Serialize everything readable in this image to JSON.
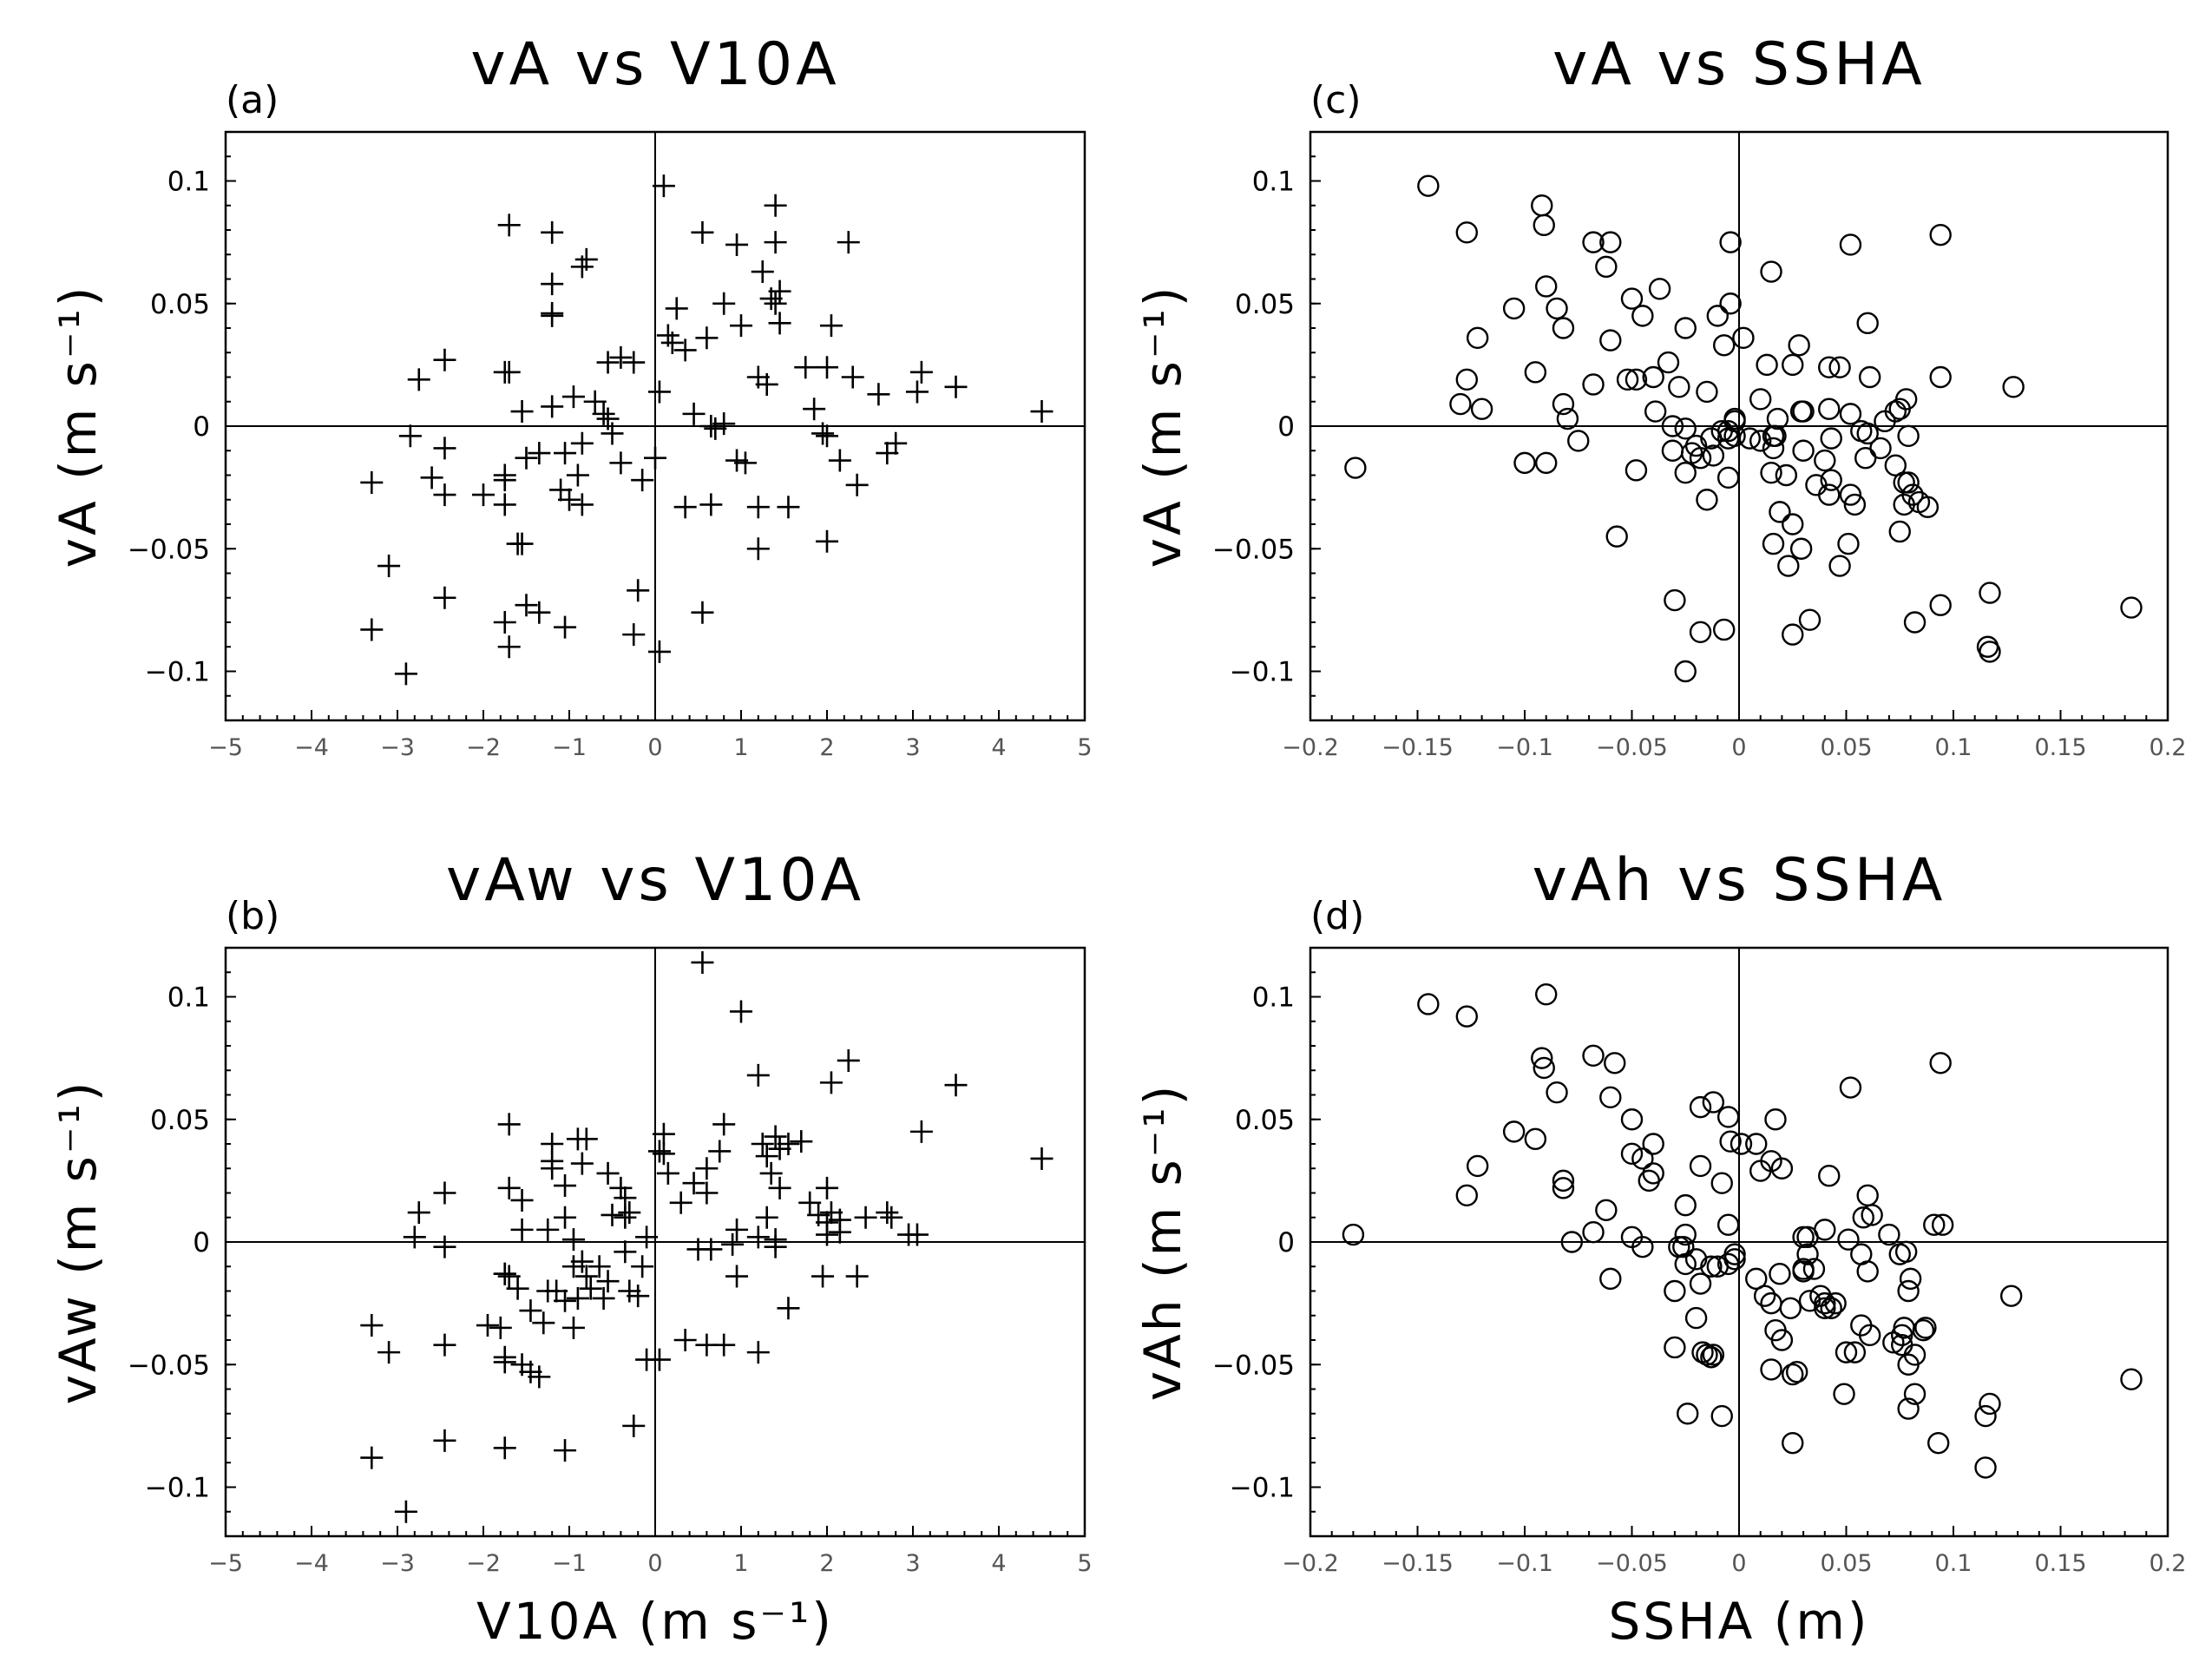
{
  "chart_data": [
    {
      "id": "a",
      "type": "scatter",
      "panel_label": "(a)",
      "title": "vA  vs  V10A",
      "ylabel": "vA (m s⁻¹)",
      "xlabel": "",
      "marker": "plus",
      "xlim": [
        -5,
        5
      ],
      "ylim": [
        -0.12,
        0.12
      ],
      "xticks": [
        -5,
        -4,
        -3,
        -2,
        -1,
        0,
        1,
        2,
        3,
        4,
        5
      ],
      "yticks": [
        -0.1,
        -0.05,
        0,
        0.05,
        0.1
      ],
      "xtick_labels": [
        "−5",
        "−4",
        "−3",
        "−2",
        "−1",
        "0",
        "1",
        "2",
        "3",
        "4",
        "5"
      ],
      "ytick_labels": [
        "−0.1",
        "−0.05",
        "0",
        "0.05",
        "0.1"
      ],
      "x": [
        0.1,
        1.4,
        -1.7,
        -1.2,
        0.55,
        0.95,
        2.25,
        1.4,
        -0.8,
        -0.85,
        1.25,
        0.25,
        -1.2,
        -1.2,
        1.45,
        1.4,
        0.8,
        1.35,
        -1.2,
        0.15,
        2.05,
        1.45,
        1.0,
        0.6,
        0.35,
        0.2,
        -0.4,
        -0.25,
        -2.45,
        -0.55,
        -2.75,
        1.75,
        2.0,
        2.3,
        3.1,
        3.5,
        0.05,
        1.2,
        -0.95,
        -1.75,
        -1.7,
        -1.2,
        -0.7,
        -0.55,
        1.3,
        2.6,
        3.05,
        0.45,
        -0.6,
        0.8,
        0.65,
        0.7,
        1.85,
        4.5,
        -1.55,
        -0.5,
        1.95,
        2.0,
        -2.85,
        -0.85,
        -1.05,
        2.8,
        2.7,
        -2.45,
        0.0,
        1.05,
        -1.35,
        -1.5,
        -0.4,
        -1.75,
        0.95,
        -0.9,
        2.15,
        -3.3,
        -2.6,
        -1.75,
        2.35,
        -0.15,
        -2.45,
        -2.0,
        -1.1,
        -1.0,
        -1.75,
        0.65,
        1.2,
        -0.85,
        1.55,
        0.35,
        2.0,
        -1.6,
        -1.55,
        1.2,
        -3.1,
        -0.2,
        -2.45,
        -1.5,
        -1.35,
        0.55,
        -1.75,
        -1.05,
        -3.3,
        -0.25,
        -1.7,
        0.05,
        -2.9
      ],
      "y": [
        0.098,
        0.09,
        0.082,
        0.079,
        0.079,
        0.074,
        0.075,
        0.075,
        0.068,
        0.065,
        0.063,
        0.048,
        0.058,
        0.046,
        0.055,
        0.05,
        0.05,
        0.052,
        0.045,
        0.037,
        0.041,
        0.042,
        0.041,
        0.036,
        0.031,
        0.034,
        0.028,
        0.026,
        0.027,
        0.026,
        0.019,
        0.024,
        0.024,
        0.02,
        0.022,
        0.016,
        0.014,
        0.02,
        0.012,
        0.022,
        0.022,
        0.008,
        0.01,
        0.003,
        0.017,
        0.013,
        0.014,
        0.005,
        0.005,
        0.001,
        0.0,
        -0.001,
        0.007,
        0.006,
        0.006,
        -0.003,
        -0.003,
        -0.004,
        -0.004,
        -0.007,
        -0.011,
        -0.007,
        -0.011,
        -0.009,
        -0.013,
        -0.015,
        -0.011,
        -0.013,
        -0.015,
        -0.02,
        -0.014,
        -0.02,
        -0.014,
        -0.023,
        -0.021,
        -0.022,
        -0.024,
        -0.022,
        -0.028,
        -0.028,
        -0.026,
        -0.03,
        -0.032,
        -0.032,
        -0.033,
        -0.032,
        -0.033,
        -0.033,
        -0.047,
        -0.048,
        -0.048,
        -0.05,
        -0.057,
        -0.067,
        -0.07,
        -0.073,
        -0.076,
        -0.076,
        -0.08,
        -0.082,
        -0.083,
        -0.085,
        -0.09,
        -0.092,
        -0.101
      ]
    },
    {
      "id": "b",
      "type": "scatter",
      "panel_label": "(b)",
      "title": "vAw  vs  V10A",
      "ylabel": "vAw (m s⁻¹)",
      "xlabel": "V10A (m s⁻¹)",
      "marker": "plus",
      "xlim": [
        -5,
        5
      ],
      "ylim": [
        -0.12,
        0.12
      ],
      "xticks": [
        -5,
        -4,
        -3,
        -2,
        -1,
        0,
        1,
        2,
        3,
        4,
        5
      ],
      "yticks": [
        -0.1,
        -0.05,
        0,
        0.05,
        0.1
      ],
      "xtick_labels": [
        "−5",
        "−4",
        "−3",
        "−2",
        "−1",
        "0",
        "1",
        "2",
        "3",
        "4",
        "5"
      ],
      "ytick_labels": [
        "−0.1",
        "−0.05",
        "0",
        "0.05",
        "0.1"
      ],
      "x": [
        0.55,
        1.0,
        2.25,
        1.2,
        2.05,
        3.5,
        3.1,
        4.5,
        -1.7,
        0.8,
        -0.8,
        -0.9,
        1.4,
        -1.2,
        0.1,
        1.25,
        1.55,
        1.7,
        1.45,
        0.75,
        -1.2,
        0.05,
        0.1,
        0.6,
        -0.85,
        -1.2,
        1.3,
        -0.55,
        0.15,
        1.35,
        -1.05,
        0.45,
        2.45,
        0.6,
        2.0,
        1.8,
        -0.4,
        -0.3,
        -0.35,
        1.45,
        2.7,
        1.9,
        -2.45,
        -1.55,
        2.05,
        2.15,
        2.75,
        -2.75,
        2.15,
        1.3,
        -1.05,
        -0.35,
        -1.25,
        -0.5,
        0.95,
        1.4,
        -1.7,
        0.3,
        2.95,
        -2.8,
        1.2,
        3.05,
        -1.55,
        -2.45,
        2.0,
        -0.95,
        -0.1,
        0.5,
        0.65,
        1.4,
        2.0,
        -0.85,
        -0.35,
        -0.95,
        -0.65,
        0.9,
        -0.15,
        1.95,
        2.35,
        -1.25,
        -1.7,
        0.95,
        -0.55,
        -0.8,
        -1.75,
        -1.15,
        -0.3,
        -1.6,
        -1.45,
        -0.75,
        1.55,
        -1.75,
        -1.05,
        -3.3,
        -1.8,
        -0.9,
        -0.6,
        -0.2,
        -1.95,
        -1.3,
        -0.95,
        0.35,
        0.6,
        0.8,
        -2.45,
        -1.55,
        1.2,
        -0.1,
        -1.75,
        0.05,
        -1.75,
        -1.45,
        -1.35,
        -3.1,
        -0.25,
        -2.45,
        -1.75,
        -1.05,
        -3.3,
        -2.9
      ],
      "y": [
        0.114,
        0.094,
        0.074,
        0.068,
        0.065,
        0.064,
        0.045,
        0.034,
        0.048,
        0.048,
        0.042,
        0.042,
        0.043,
        0.04,
        0.044,
        0.04,
        0.04,
        0.041,
        0.038,
        0.037,
        0.033,
        0.037,
        0.036,
        0.03,
        0.032,
        0.03,
        0.035,
        0.028,
        0.028,
        0.028,
        0.023,
        0.024,
        0.01,
        0.02,
        0.022,
        0.016,
        0.022,
        0.012,
        0.018,
        0.022,
        0.012,
        0.011,
        0.02,
        0.017,
        0.012,
        0.009,
        0.01,
        0.012,
        0.004,
        0.01,
        0.01,
        0.01,
        0.005,
        0.011,
        0.005,
        0.001,
        0.022,
        0.016,
        0.003,
        0.002,
        0.002,
        0.003,
        0.005,
        -0.002,
        0.008,
        0.001,
        0.002,
        -0.003,
        -0.003,
        -0.002,
        0.003,
        -0.008,
        -0.004,
        -0.01,
        -0.01,
        -0.001,
        -0.01,
        -0.014,
        -0.014,
        -0.02,
        -0.014,
        -0.014,
        -0.016,
        -0.014,
        -0.013,
        -0.02,
        -0.02,
        -0.019,
        -0.028,
        -0.019,
        -0.027,
        -0.013,
        -0.024,
        -0.034,
        -0.035,
        -0.023,
        -0.023,
        -0.022,
        -0.034,
        -0.033,
        -0.035,
        -0.04,
        -0.042,
        -0.042,
        -0.042,
        -0.05,
        -0.045,
        -0.048,
        -0.047,
        -0.048,
        -0.049,
        -0.053,
        -0.055,
        -0.045,
        -0.075,
        -0.081,
        -0.084,
        -0.085,
        -0.088,
        -0.11
      ]
    },
    {
      "id": "c",
      "type": "scatter",
      "panel_label": "(c)",
      "title": "vA  vs  SSHA",
      "ylabel": "vA (m s⁻¹)",
      "xlabel": "",
      "marker": "circle",
      "xlim": [
        -0.2,
        0.2
      ],
      "ylim": [
        -0.12,
        0.12
      ],
      "xticks": [
        -0.2,
        -0.15,
        -0.1,
        -0.05,
        0,
        0.05,
        0.1,
        0.15,
        0.2
      ],
      "yticks": [
        -0.1,
        -0.05,
        0,
        0.05,
        0.1
      ],
      "xtick_labels": [
        "−0.2",
        "−0.15",
        "−0.1",
        "−0.05",
        "0",
        "0.05",
        "0.1",
        "0.15",
        "0.2"
      ],
      "ytick_labels": [
        "−0.1",
        "−0.05",
        "0",
        "0.05",
        "0.1"
      ],
      "x": [
        -0.145,
        -0.092,
        -0.127,
        -0.091,
        0.094,
        -0.068,
        -0.06,
        0.052,
        -0.062,
        -0.004,
        -0.09,
        0.015,
        -0.085,
        -0.105,
        -0.05,
        -0.037,
        -0.004,
        -0.082,
        0.06,
        -0.01,
        -0.045,
        0.047,
        -0.122,
        0.002,
        -0.06,
        -0.025,
        -0.007,
        0.013,
        0.028,
        0.025,
        -0.033,
        -0.028,
        -0.052,
        0.042,
        -0.127,
        -0.082,
        -0.04,
        -0.095,
        0.061,
        0.078,
        -0.068,
        -0.015,
        0.094,
        0.073,
        -0.048,
        0.01,
        -0.039,
        0.128,
        -0.13,
        -0.002,
        0.042,
        0.018,
        -0.005,
        -0.08,
        -0.002,
        0.052,
        0.075,
        0.057,
        -0.031,
        0.016,
        -0.005,
        -0.075,
        -0.12,
        0.017,
        -0.025,
        -0.008,
        -0.002,
        0.03,
        0.01,
        0.029,
        0.043,
        0.005,
        0.068,
        0.016,
        -0.013,
        -0.02,
        0.03,
        0.06,
        -0.022,
        -0.012,
        0.079,
        -0.018,
        -0.031,
        -0.1,
        -0.048,
        -0.09,
        0.073,
        -0.025,
        0.015,
        0.04,
        0.066,
        0.059,
        0.022,
        0.042,
        0.043,
        0.036,
        -0.005,
        0.077,
        0.079,
        0.081,
        0.052,
        0.084,
        0.054,
        -0.015,
        0.077,
        0.019,
        0.088,
        0.075,
        -0.179,
        0.029,
        0.016,
        0.025,
        0.051,
        -0.057,
        0.023,
        0.047,
        0.117,
        0.094,
        0.082,
        -0.007,
        -0.018,
        0.025,
        0.183,
        -0.03,
        0.116,
        0.117,
        0.033,
        -0.025
      ],
      "y": [
        0.098,
        0.09,
        0.079,
        0.082,
        0.078,
        0.075,
        0.075,
        0.074,
        0.065,
        0.075,
        0.057,
        0.063,
        0.048,
        0.048,
        0.052,
        0.056,
        0.05,
        0.04,
        0.042,
        0.045,
        0.045,
        0.024,
        0.036,
        0.036,
        0.035,
        0.04,
        0.033,
        0.025,
        0.033,
        0.025,
        0.026,
        0.016,
        0.019,
        0.024,
        0.019,
        0.009,
        0.02,
        0.022,
        0.02,
        0.011,
        0.017,
        0.014,
        0.02,
        0.006,
        0.019,
        0.011,
        0.006,
        0.016,
        0.009,
        0.003,
        0.007,
        0.003,
        -0.002,
        0.003,
        0.002,
        0.005,
        0.007,
        -0.002,
        0.0,
        -0.004,
        -0.005,
        -0.006,
        0.007,
        -0.004,
        -0.001,
        -0.002,
        -0.004,
        0.006,
        -0.006,
        0.006,
        -0.005,
        -0.005,
        0.002,
        -0.009,
        -0.005,
        -0.008,
        -0.01,
        -0.003,
        -0.011,
        -0.012,
        -0.004,
        -0.013,
        -0.01,
        -0.015,
        -0.018,
        -0.015,
        -0.016,
        -0.019,
        -0.019,
        -0.014,
        -0.009,
        -0.013,
        -0.02,
        -0.028,
        -0.022,
        -0.024,
        -0.021,
        -0.023,
        -0.023,
        -0.028,
        -0.028,
        -0.031,
        -0.032,
        -0.03,
        -0.032,
        -0.035,
        -0.033,
        -0.043,
        -0.017,
        -0.05,
        -0.048,
        -0.04,
        -0.048,
        -0.045,
        -0.057,
        -0.057,
        -0.068,
        -0.073,
        -0.08,
        -0.083,
        -0.084,
        -0.085,
        -0.074,
        -0.071,
        -0.09,
        -0.092,
        -0.079,
        -0.1
      ]
    },
    {
      "id": "d",
      "type": "scatter",
      "panel_label": "(d)",
      "title": "vAh  vs  SSHA",
      "ylabel": "vAh (m s⁻¹)",
      "xlabel": "SSHA (m)",
      "marker": "circle",
      "xlim": [
        -0.2,
        0.2
      ],
      "ylim": [
        -0.12,
        0.12
      ],
      "xticks": [
        -0.2,
        -0.15,
        -0.1,
        -0.05,
        0,
        0.05,
        0.1,
        0.15,
        0.2
      ],
      "yticks": [
        -0.1,
        -0.05,
        0,
        0.05,
        0.1
      ],
      "xtick_labels": [
        "−0.2",
        "−0.15",
        "−0.1",
        "−0.05",
        "0",
        "0.05",
        "0.1",
        "0.15",
        "0.2"
      ],
      "ytick_labels": [
        "−0.1",
        "−0.05",
        "0",
        "0.05",
        "0.1"
      ],
      "x": [
        -0.09,
        -0.145,
        -0.127,
        -0.068,
        -0.092,
        -0.058,
        -0.091,
        0.094,
        -0.085,
        0.052,
        -0.06,
        -0.018,
        -0.105,
        -0.012,
        -0.095,
        -0.05,
        -0.005,
        -0.004,
        0.008,
        -0.05,
        -0.04,
        -0.122,
        -0.045,
        0.015,
        0.02,
        0.042,
        -0.082,
        -0.008,
        -0.042,
        -0.127,
        0.01,
        0.017,
        -0.018,
        -0.04,
        0.06,
        0.001,
        -0.025,
        0.058,
        0.095,
        -0.062,
        -0.005,
        0.091,
        -0.068,
        0.04,
        -0.078,
        -0.05,
        -0.082,
        0.03,
        0.062,
        -0.025,
        -0.026,
        0.032,
        -0.18,
        0.051,
        0.07,
        0.075,
        0.057,
        0.078,
        -0.02,
        0.032,
        0.06,
        0.035,
        -0.005,
        -0.028,
        -0.025,
        -0.013,
        -0.01,
        -0.002,
        0.03,
        0.08,
        0.079,
        0.008,
        0.019,
        -0.06,
        -0.045,
        0.012,
        -0.018,
        -0.002,
        0.03,
        -0.03,
        0.043,
        0.04,
        0.127,
        0.024,
        -0.02,
        -0.015,
        0.033,
        0.015,
        0.04,
        0.038,
        0.045,
        0.057,
        0.086,
        0.061,
        0.087,
        0.076,
        0.02,
        0.017,
        0.077,
        0.05,
        -0.03,
        0.076,
        0.072,
        0.082,
        -0.017,
        0.054,
        0.025,
        -0.013,
        0.027,
        0.079,
        0.015,
        0.082,
        0.183,
        0.049,
        0.117,
        -0.012,
        0.079,
        0.093,
        0.115,
        -0.024,
        -0.008,
        0.025,
        0.115
      ],
      "y": [
        0.101,
        0.097,
        0.092,
        0.076,
        0.075,
        0.073,
        0.071,
        0.073,
        0.061,
        0.063,
        0.059,
        0.055,
        0.045,
        0.057,
        0.042,
        0.05,
        0.051,
        0.041,
        0.04,
        0.036,
        0.04,
        0.031,
        0.034,
        0.033,
        0.03,
        0.027,
        0.025,
        0.024,
        0.025,
        0.019,
        0.029,
        0.05,
        0.031,
        0.028,
        0.019,
        0.04,
        0.015,
        0.01,
        0.007,
        0.013,
        0.007,
        0.007,
        0.004,
        0.005,
        0.0,
        0.002,
        0.022,
        0.002,
        0.011,
        0.003,
        -0.002,
        0.002,
        0.003,
        0.001,
        0.003,
        -0.005,
        -0.005,
        -0.004,
        -0.007,
        -0.005,
        -0.012,
        -0.011,
        -0.009,
        -0.002,
        -0.009,
        -0.01,
        -0.01,
        -0.007,
        -0.011,
        -0.015,
        -0.02,
        -0.015,
        -0.013,
        -0.015,
        -0.002,
        -0.022,
        -0.017,
        -0.005,
        -0.012,
        -0.02,
        -0.027,
        -0.027,
        -0.022,
        -0.027,
        -0.031,
        -0.046,
        -0.024,
        -0.025,
        -0.025,
        -0.022,
        -0.025,
        -0.034,
        -0.036,
        -0.038,
        -0.035,
        -0.038,
        -0.04,
        -0.036,
        -0.035,
        -0.045,
        -0.043,
        -0.042,
        -0.041,
        -0.046,
        -0.045,
        -0.045,
        -0.054,
        -0.047,
        -0.053,
        -0.05,
        -0.052,
        -0.062,
        -0.056,
        -0.062,
        -0.066,
        -0.046,
        -0.068,
        -0.082,
        -0.071,
        -0.07,
        -0.071,
        -0.082,
        -0.092
      ]
    }
  ]
}
